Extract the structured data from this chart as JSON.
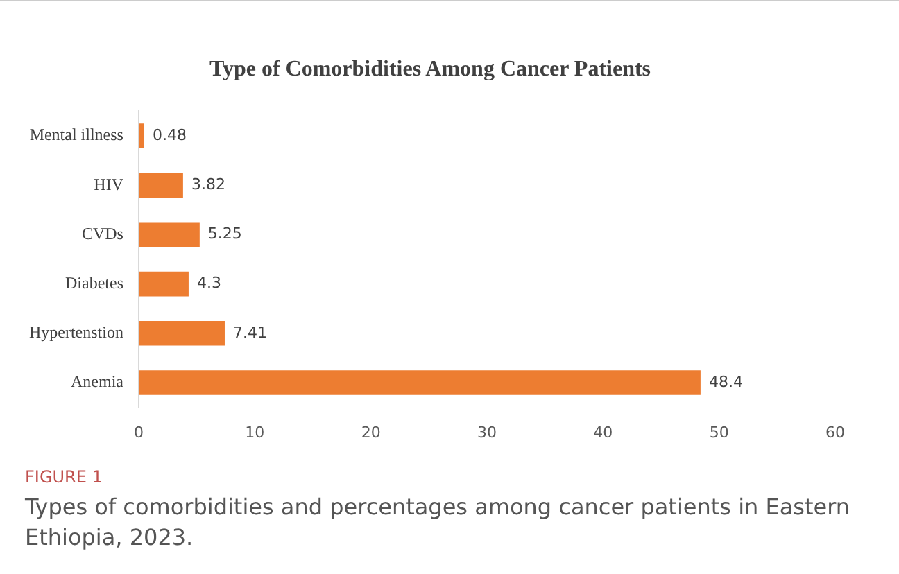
{
  "chart_data": {
    "type": "bar",
    "orientation": "horizontal",
    "title": "Type of Comorbidities Among Cancer Patients",
    "categories": [
      "Mental illness",
      "HIV",
      "CVDs",
      "Diabetes",
      "Hypertenstion",
      "Anemia"
    ],
    "values": [
      0.48,
      3.82,
      5.25,
      4.3,
      7.41,
      48.4
    ],
    "color": "#ed7d31",
    "xlim": [
      0,
      60
    ],
    "xticks": [
      0,
      10,
      20,
      30,
      40,
      50,
      60
    ],
    "grid": false,
    "legend": false,
    "data_labels": true,
    "annotations": [
      "FIGURE 1",
      "Types of comorbidities and percentages among cancer patients in Eastern Ethiopia, 2023."
    ]
  }
}
